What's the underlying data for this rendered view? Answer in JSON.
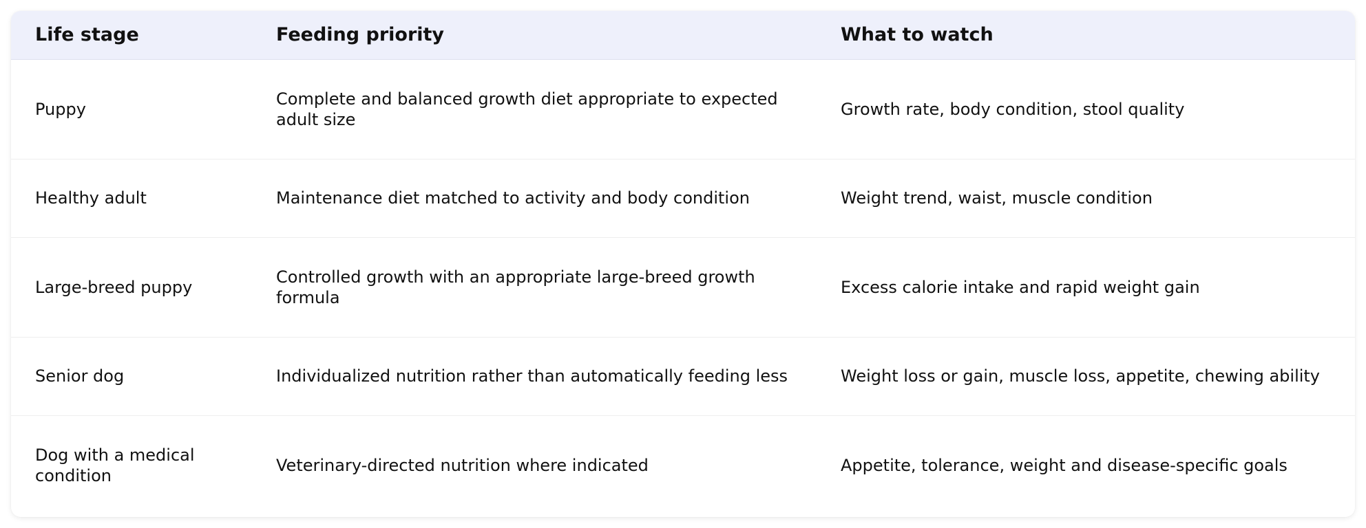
{
  "table": {
    "headers": [
      "Life stage",
      "Feeding priority",
      "What to watch"
    ],
    "rows": [
      {
        "stage": "Puppy",
        "priority": "Complete and balanced growth diet appropriate to expected adult size",
        "watch": "Growth rate, body condition, stool quality"
      },
      {
        "stage": "Healthy adult",
        "priority": "Maintenance diet matched to activity and body condition",
        "watch": "Weight trend, waist, muscle condition"
      },
      {
        "stage": "Large-breed puppy",
        "priority": "Controlled growth with an appropriate large-breed growth formula",
        "watch": "Excess calorie intake and rapid weight gain"
      },
      {
        "stage": "Senior dog",
        "priority": "Individualized nutrition rather than automatically feeding less",
        "watch": "Weight loss or gain, muscle loss, appetite, chewing ability"
      },
      {
        "stage": "Dog with a medical condition",
        "priority": "Veterinary-directed nutrition where indicated",
        "watch": "Appetite, tolerance, weight and disease-specific goals"
      }
    ]
  }
}
